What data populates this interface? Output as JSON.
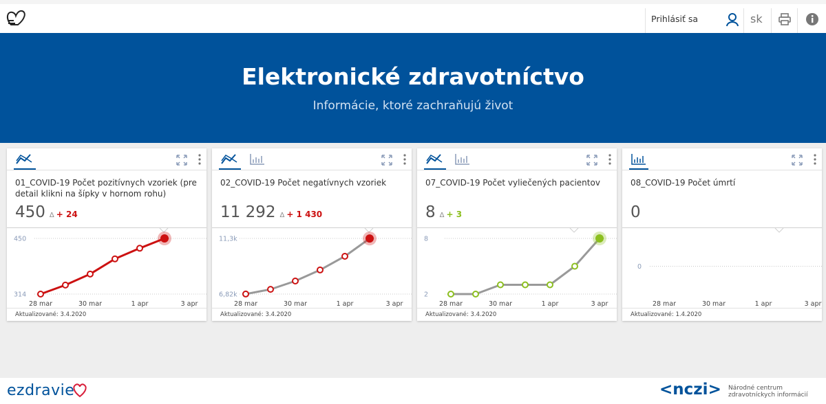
{
  "header": {
    "login": "Prihlásiť sa",
    "language": "sk"
  },
  "hero": {
    "title": "Elektronické zdravotníctvo",
    "subtitle": "Informácie, ktoré zachraňujú život"
  },
  "delta_symbol": "Δ",
  "cards": [
    {
      "title": "01_COVID-19 Počet pozitívnych vzoriek (pre detail klikni na šípky v hornom rohu)",
      "value": 450,
      "delta": 24,
      "delta_label": "+ 24",
      "delta_color": "#cc1111",
      "updated": "Aktualizované: 3.4.2020",
      "chart": {
        "type": "line",
        "categories": [
          "28 mar",
          null,
          "30 mar",
          null,
          "1 apr",
          null,
          "3 apr"
        ],
        "values": [
          314,
          336,
          363,
          400,
          426,
          450,
          null
        ],
        "ylim": [
          314,
          450
        ],
        "yticks": [
          314,
          450
        ],
        "line_color": "#cc1111",
        "marker_color": "#cc1111",
        "grid": true
      }
    },
    {
      "title": "02_COVID-19 Počet negatívnych vzoriek",
      "value": 11292,
      "value_label": "11 292",
      "delta": 1430,
      "delta_label": "+ 1 430",
      "delta_color": "#cc1111",
      "updated": "Aktualizované: 3.4.2020",
      "chart": {
        "type": "line",
        "categories": [
          "28 mar",
          null,
          "30 mar",
          null,
          "1 apr",
          null,
          "3 apr"
        ],
        "values": [
          6824,
          7200,
          7870,
          8760,
          9862,
          11292,
          null
        ],
        "ylim": [
          6820,
          11300
        ],
        "yticks": [
          {
            "value": 6820,
            "label": "6,82k"
          },
          {
            "value": 11300,
            "label": "11,3k"
          }
        ],
        "line_color": "#999999",
        "marker_color": "#cc1111",
        "grid": true
      }
    },
    {
      "title": "07_COVID-19 Počet vyliečených pacientov",
      "value": 8,
      "delta": 3,
      "delta_label": "+ 3",
      "delta_color": "#8cbf1f",
      "updated": "Aktualizované: 3.4.2020",
      "chart": {
        "type": "line",
        "categories": [
          "28 mar",
          null,
          "30 mar",
          null,
          "1 apr",
          null,
          "3 apr"
        ],
        "values": [
          2,
          2,
          3,
          3,
          3,
          5,
          8
        ],
        "ylim": [
          2,
          8
        ],
        "yticks": [
          2,
          8
        ],
        "line_color": "#999999",
        "marker_color": "#8cbf1f",
        "grid": true
      }
    },
    {
      "title": "08_COVID-19 Počet úmrtí",
      "value": 0,
      "updated": "Aktualizované: 1.4.2020",
      "chart": {
        "type": "line",
        "categories": [
          "28 mar",
          null,
          "30 mar",
          null,
          "1 apr",
          null,
          "3 apr"
        ],
        "yticks": [
          0
        ],
        "grid": true
      }
    }
  ],
  "footer": {
    "brand": "ezdravie",
    "partner": "nczi",
    "partner_name": "Národné centrum zdravotníckych informácií"
  }
}
